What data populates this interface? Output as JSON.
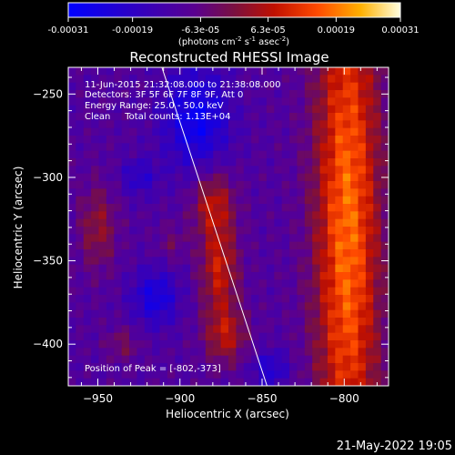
{
  "chart_data": {
    "type": "heatmap",
    "title": "Reconstructed RHESSI Image",
    "xlabel": "Heliocentric X (arcsec)",
    "ylabel": "Heliocentric Y (arcsec)",
    "xlim": [
      -968,
      -773
    ],
    "ylim": [
      -425,
      -234
    ],
    "x_ticks": [
      -950,
      -900,
      -850,
      -800
    ],
    "x_tick_labels": [
      "−950",
      "−900",
      "−850",
      "−800"
    ],
    "y_ticks": [
      -250,
      -300,
      -350,
      -400
    ],
    "y_tick_labels": [
      "−250",
      "−300",
      "−350",
      "−400"
    ],
    "colorbar": {
      "min": -0.00031,
      "max": 0.00031,
      "ticks": [
        -0.00031,
        -0.00019,
        -6.3e-05,
        6.3e-05,
        0.00019,
        0.00031
      ],
      "tick_labels": [
        "-0.00031",
        "-0.00019",
        "-6.3e-05",
        "6.3e-05",
        "0.00019",
        "0.00031"
      ],
      "units_label": "(photons cm",
      "units_exp1": "-2",
      "units_mid": " s",
      "units_exp2": "-1",
      "units_end": " asec",
      "units_exp3": "-2",
      "units_close": ")"
    },
    "annotations": {
      "line1": "11-Jun-2015 21:32:08.000 to 21:38:08.000",
      "line2": "Detectors: 3F 5F 6F 7F 8F 9F, Att 0",
      "line3": "Energy Range: 25.0 - 50.0 keV",
      "line4": "Clean     Total counts: 1.13E+04",
      "peak": "Position of Peak = [-802,-373]"
    },
    "limb_line": {
      "x": [
        -911,
        -847
      ],
      "y": [
        -234,
        -425
      ]
    },
    "peak_position": {
      "x": -802,
      "y": -373
    },
    "hot_regions": [
      {
        "x": -798,
        "y": -330,
        "sx": 14,
        "sy": 120,
        "amp": 0.00028
      },
      {
        "x": -880,
        "y": -315,
        "sx": 9,
        "sy": 14,
        "amp": 0.00016
      },
      {
        "x": -876,
        "y": -355,
        "sx": 8,
        "sy": 20,
        "amp": 0.00018
      },
      {
        "x": -872,
        "y": -395,
        "sx": 9,
        "sy": 12,
        "amp": 0.00015
      },
      {
        "x": -950,
        "y": -330,
        "sx": 8,
        "sy": 18,
        "amp": 0.00012
      },
      {
        "x": -935,
        "y": -400,
        "sx": 7,
        "sy": 7,
        "amp": 8e-05
      },
      {
        "x": -905,
        "y": -340,
        "sx": 6,
        "sy": 8,
        "amp": 6e-05
      }
    ],
    "cold_regions": [
      {
        "x": -890,
        "y": -265,
        "sx": 14,
        "sy": 22,
        "amp": -0.00018
      },
      {
        "x": -915,
        "y": -372,
        "sx": 10,
        "sy": 12,
        "amp": -0.00015
      },
      {
        "x": -925,
        "y": -300,
        "sx": 8,
        "sy": 8,
        "amp": -0.0001
      },
      {
        "x": -845,
        "y": -415,
        "sx": 8,
        "sy": 8,
        "amp": -0.00012
      }
    ]
  },
  "footer": {
    "timestamp": "21-May-2022 19:05"
  }
}
